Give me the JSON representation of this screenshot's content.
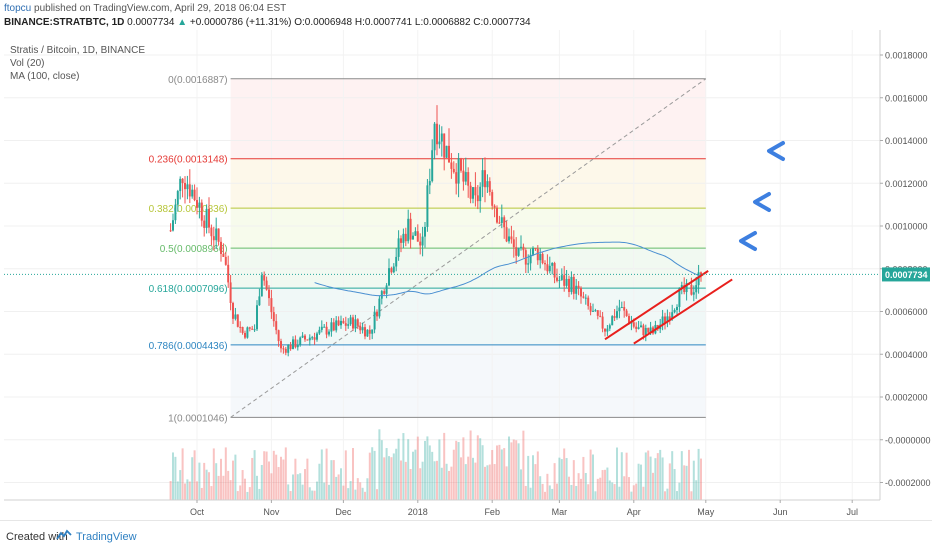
{
  "header": {
    "author": "ftopcu",
    "published": " published on TradingView.com, April 29, 2018 06:04 EST",
    "symbol": "BINANCE:STRATBTC, 1D",
    "price": " 0.0007734",
    "arrow": " ▲",
    "change": " +0.0000786 (+11.31%)",
    "ohlc": " O:0.0006948 H:0.0007741 L:0.0006882 C:0.0007734"
  },
  "legend": {
    "title": "Stratis / Bitcoin, 1D, BINANCE",
    "vol": "Vol (20)",
    "ma": "MA (100, close)"
  },
  "footer": {
    "created": "Created with",
    "brand": "TradingView"
  },
  "colors": {
    "up": "#26a69a",
    "down": "#ef5350",
    "ma": "#4a8fd1",
    "trend_channel": "#e8201d",
    "arrow": "#3d7fe0",
    "price_label": "#26a69a"
  },
  "chart_data": {
    "type": "candlestick",
    "y_axis_ticks": [
      "0.0018000",
      "0.0016000",
      "0.0014000",
      "0.0012000",
      "0.0010000",
      "0.0008000",
      "0.0006000",
      "0.0004000",
      "0.0002000",
      "-0.0000000",
      "-0.0002000"
    ],
    "x_axis_ticks": [
      "Oct",
      "Nov",
      "Dec",
      "2018",
      "Feb",
      "Mar",
      "Apr",
      "May",
      "Jun",
      "Jul"
    ],
    "last_price": "0.0007734",
    "fib_levels": [
      {
        "label": "0(0.0016887)",
        "value": 0.0016887,
        "color": "#8a8a8a"
      },
      {
        "label": "0.236(0.0013148)",
        "value": 0.0013148,
        "color": "#e53935"
      },
      {
        "label": "0.382(0.0010836)",
        "value": 0.0010836,
        "color": "#b7c63a"
      },
      {
        "label": "0.5(0.0008966)",
        "value": 0.0008966,
        "color": "#66bb6a"
      },
      {
        "label": "0.618(0.0007096)",
        "value": 0.0007096,
        "color": "#26a69a"
      },
      {
        "label": "0.786(0.0004436)",
        "value": 0.0004436,
        "color": "#2e86c1"
      },
      {
        "label": "1(0.0001046)",
        "value": 0.0001046,
        "color": "#8a8a8a"
      }
    ],
    "price_keypoints": [
      [
        "2017-09-20",
        0.00098
      ],
      [
        "2017-09-25",
        0.00125
      ],
      [
        "2017-10-01",
        0.00112
      ],
      [
        "2017-10-06",
        0.001
      ],
      [
        "2017-10-12",
        0.00088
      ],
      [
        "2017-10-16",
        0.0006
      ],
      [
        "2017-10-20",
        0.0005
      ],
      [
        "2017-10-25",
        0.00052
      ],
      [
        "2017-10-28",
        0.0008
      ],
      [
        "2017-11-01",
        0.0006
      ],
      [
        "2017-11-05",
        0.00042
      ],
      [
        "2017-11-15",
        0.00047
      ],
      [
        "2017-11-25",
        0.00052
      ],
      [
        "2017-12-05",
        0.00055
      ],
      [
        "2017-12-12",
        0.0005
      ],
      [
        "2017-12-20",
        0.0008
      ],
      [
        "2017-12-28",
        0.001
      ],
      [
        "2018-01-03",
        0.0009
      ],
      [
        "2018-01-08",
        0.0015
      ],
      [
        "2018-01-13",
        0.00135
      ],
      [
        "2018-01-18",
        0.00125
      ],
      [
        "2018-01-25",
        0.0011
      ],
      [
        "2018-01-29",
        0.00125
      ],
      [
        "2018-02-05",
        0.001
      ],
      [
        "2018-02-12",
        0.00085
      ],
      [
        "2018-02-20",
        0.00088
      ],
      [
        "2018-02-28",
        0.00075
      ],
      [
        "2018-03-06",
        0.00073
      ],
      [
        "2018-03-14",
        0.0006
      ],
      [
        "2018-03-20",
        0.00052
      ],
      [
        "2018-03-26",
        0.00062
      ],
      [
        "2018-04-02",
        0.00052
      ],
      [
        "2018-04-09",
        0.0005
      ],
      [
        "2018-04-15",
        0.00058
      ],
      [
        "2018-04-20",
        0.00068
      ],
      [
        "2018-04-25",
        0.0007
      ],
      [
        "2018-04-29",
        0.0007734
      ]
    ]
  }
}
